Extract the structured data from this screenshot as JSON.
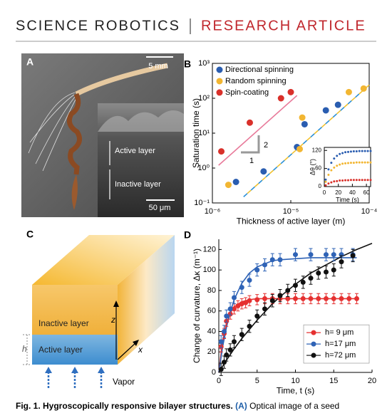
{
  "header": {
    "journal": "SCIENCE ROBOTICS",
    "section": "RESEARCH ARTICLE"
  },
  "panel_a": {
    "label": "A",
    "scale_bar": "5 mm",
    "active_layer": "Active layer",
    "inactive_layer": "Inactive layer",
    "inset_scale_bar": "50 μm"
  },
  "panel_c": {
    "label": "C",
    "inactive_layer": "Inactive layer",
    "active_layer": "Active layer",
    "thickness": "h",
    "z_axis": "z",
    "x_axis": "x",
    "vapor": "Vapor"
  },
  "chart_data": [
    {
      "type": "scatter",
      "panel": "B",
      "xlabel": "Thickness of active layer (m)",
      "ylabel": "Saturation time (s)",
      "xscale": "log",
      "yscale": "log",
      "xlim": [
        1e-06,
        0.0001
      ],
      "ylim": [
        0.1,
        1000
      ],
      "xticks": [
        {
          "value": 1e-06,
          "label": "10⁻⁶"
        },
        {
          "value": 1e-05,
          "label": "10⁻⁵"
        },
        {
          "value": 0.0001,
          "label": "10⁻⁴"
        }
      ],
      "yticks": [
        {
          "value": 0.1,
          "label": "10⁻¹"
        },
        {
          "value": 1,
          "label": "10⁰"
        },
        {
          "value": 10,
          "label": "10¹"
        },
        {
          "value": 100,
          "label": "10²"
        },
        {
          "value": 1000,
          "label": "10³"
        }
      ],
      "legend": "upper left",
      "series": [
        {
          "name": "Directional spinning",
          "color": "#2a5db0",
          "x": [
            2e-06,
            4.5e-06,
            1.2e-05,
            1.5e-05,
            2.8e-05,
            4e-05
          ],
          "values": [
            0.4,
            0.8,
            4,
            18,
            45,
            65
          ]
        },
        {
          "name": "Random spinning",
          "color": "#f2b632",
          "x": [
            1.6e-06,
            1.3e-05,
            1.4e-05,
            5.5e-05,
            8.5e-05
          ],
          "values": [
            0.33,
            3.5,
            28,
            150,
            190
          ]
        },
        {
          "name": "Spin-coating",
          "color": "#d9302a",
          "x": [
            1.3e-06,
            3e-06,
            7.5e-06,
            1e-05
          ],
          "values": [
            3,
            20,
            100,
            150
          ]
        }
      ],
      "fits": [
        {
          "color": "#e87a9a",
          "x": [
            1.2e-06,
            1.2e-05
          ],
          "values": [
            1.2,
            120
          ]
        },
        {
          "colors": [
            "#2a8fd8",
            "#f2c12e"
          ],
          "x": [
            2.5e-06,
            0.0001
          ],
          "values": [
            0.15,
            240
          ]
        }
      ],
      "slope": {
        "rise": "2",
        "run": "1"
      }
    },
    {
      "type": "scatter",
      "xlabel": "Time (s)",
      "ylabel": "Δθ (°)",
      "xlim": [
        0,
        66
      ],
      "ylim": [
        0,
        130
      ],
      "xticks": [
        0,
        20,
        40,
        60
      ],
      "yticks": [
        0,
        60,
        120
      ],
      "x": [
        2,
        6,
        10,
        14,
        18,
        22,
        26,
        30,
        34,
        38,
        42,
        46,
        50,
        54,
        58,
        62,
        66
      ],
      "series": [
        {
          "color": "#2a5db0",
          "values": [
            23,
            57,
            79,
            93,
            102,
            108,
            111,
            114,
            115,
            116,
            117,
            117,
            118,
            118,
            118,
            118,
            118
          ]
        },
        {
          "color": "#f2b632",
          "values": [
            16,
            39,
            54,
            63,
            69,
            73,
            76,
            77,
            78,
            79,
            79,
            80,
            80,
            80,
            80,
            80,
            80
          ]
        },
        {
          "color": "#d9302a",
          "values": [
            4,
            10,
            14,
            17,
            18,
            20,
            20,
            21,
            21,
            22,
            22,
            22,
            22,
            22,
            22,
            22,
            22
          ]
        }
      ]
    },
    {
      "type": "scatter",
      "panel": "D",
      "xlabel": "Time, t (s)",
      "ylabel": "Change of curvature, Δκ (m⁻¹)",
      "xlim": [
        0,
        20
      ],
      "ylim": [
        0,
        130
      ],
      "xticks": [
        0,
        5,
        10,
        15,
        20
      ],
      "yticks": [
        0,
        20,
        40,
        60,
        80,
        100,
        120
      ],
      "legend": "lower right",
      "series": [
        {
          "name": "h=  9 μm",
          "color": "#e53030",
          "x": [
            0.3,
            0.7,
            1,
            1.5,
            2,
            2.5,
            3,
            3.5,
            4,
            5,
            6,
            7,
            8,
            9,
            10,
            11,
            12,
            13,
            14,
            15,
            16,
            17,
            18
          ],
          "values": [
            25,
            38,
            50,
            57,
            62,
            65,
            67,
            68,
            70,
            71,
            72,
            72,
            72,
            72,
            72,
            72,
            72,
            72,
            72,
            72,
            72,
            72,
            72
          ],
          "errors": [
            5,
            5,
            5,
            5,
            5,
            5,
            5,
            5,
            5,
            5,
            5,
            5,
            5,
            5,
            5,
            5,
            5,
            5,
            5,
            5,
            5,
            5,
            5
          ]
        },
        {
          "name": "h=17 μm",
          "color": "#2f63b6",
          "x": [
            0.3,
            0.7,
            1,
            1.5,
            2,
            3,
            4,
            5,
            6,
            7,
            8,
            10,
            12,
            14,
            15,
            16,
            17.5
          ],
          "values": [
            30,
            40,
            55,
            62,
            73,
            83,
            90,
            100,
            105,
            110,
            110,
            115,
            115,
            115,
            115,
            115,
            115
          ],
          "errors": [
            6,
            6,
            6,
            6,
            6,
            6,
            6,
            6,
            6,
            6,
            6,
            6,
            6,
            6,
            6,
            6,
            6
          ]
        },
        {
          "name": "h=72 μm",
          "color": "#111111",
          "x": [
            0.3,
            0.7,
            1,
            1.5,
            2,
            3,
            4,
            5,
            6,
            7,
            8,
            9,
            10,
            11,
            12,
            13,
            14,
            15,
            16,
            17.5
          ],
          "values": [
            3,
            10,
            17,
            22,
            30,
            37,
            45,
            55,
            62,
            70,
            75,
            80,
            85,
            88,
            92,
            97,
            98,
            100,
            108,
            114
          ],
          "errors": [
            6,
            6,
            6,
            6,
            6,
            6,
            6,
            6,
            6,
            6,
            6,
            6,
            6,
            6,
            6,
            6,
            6,
            6,
            6,
            6
          ]
        }
      ],
      "fits": [
        {
          "color": "#e53030",
          "x": [
            0,
            0.5,
            1,
            1.5,
            2,
            3,
            4,
            5,
            6,
            7,
            8,
            10,
            12,
            14,
            16,
            18
          ],
          "values": [
            0,
            31,
            48,
            58,
            64,
            69,
            71,
            72,
            72,
            72,
            72,
            72,
            72,
            72,
            72,
            72
          ]
        },
        {
          "color": "#2f63b6",
          "x": [
            0,
            0.5,
            1,
            1.5,
            2,
            3,
            4,
            5,
            6,
            7,
            8,
            10,
            12,
            14,
            16,
            18
          ],
          "values": [
            0,
            25,
            44,
            59,
            71,
            87,
            97,
            103,
            106,
            109,
            110,
            111,
            112,
            112,
            112,
            112
          ]
        },
        {
          "color": "#111111",
          "x": [
            0,
            1,
            2,
            3,
            4,
            5,
            6,
            7,
            8,
            10,
            12,
            14,
            16,
            18,
            20
          ],
          "values": [
            0,
            12,
            23,
            33,
            42,
            51,
            59,
            67,
            74,
            86,
            97,
            105,
            113,
            120,
            126
          ]
        }
      ]
    }
  ],
  "caption": {
    "title": "Fig. 1. Hygroscopically responsive bilayer structures.",
    "label_a": "(A)",
    "text": "Optical image of a seed"
  }
}
